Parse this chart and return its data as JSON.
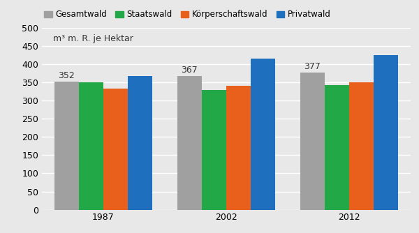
{
  "years": [
    "1987",
    "2002",
    "2012"
  ],
  "series": [
    {
      "name": "Gesamtwald",
      "color": "#A0A0A0",
      "values": [
        352,
        367,
        377
      ],
      "show_label": true
    },
    {
      "name": "Staatswald",
      "color": "#22A846",
      "values": [
        350,
        330,
        343
      ],
      "show_label": false
    },
    {
      "name": "Körperschaftswald",
      "color": "#E8601C",
      "values": [
        333,
        340,
        350
      ],
      "show_label": false
    },
    {
      "name": "Privatwald",
      "color": "#1F6FBF",
      "values": [
        368,
        415,
        425
      ],
      "show_label": false
    }
  ],
  "ylabel_text": "m³ m. R. je Hektar",
  "ylim": [
    0,
    500
  ],
  "yticks": [
    0,
    50,
    100,
    150,
    200,
    250,
    300,
    350,
    400,
    450,
    500
  ],
  "bar_width": 0.2,
  "group_positions": [
    1.0,
    2.0,
    3.0
  ],
  "xlim": [
    0.5,
    3.5
  ],
  "bg_color": "#E8E8E8",
  "plot_bg_color": "#E8E8E8",
  "grid_color": "#FFFFFF",
  "label_fontsize": 9,
  "legend_fontsize": 8.5,
  "tick_fontsize": 9,
  "annotation_fontsize": 9
}
